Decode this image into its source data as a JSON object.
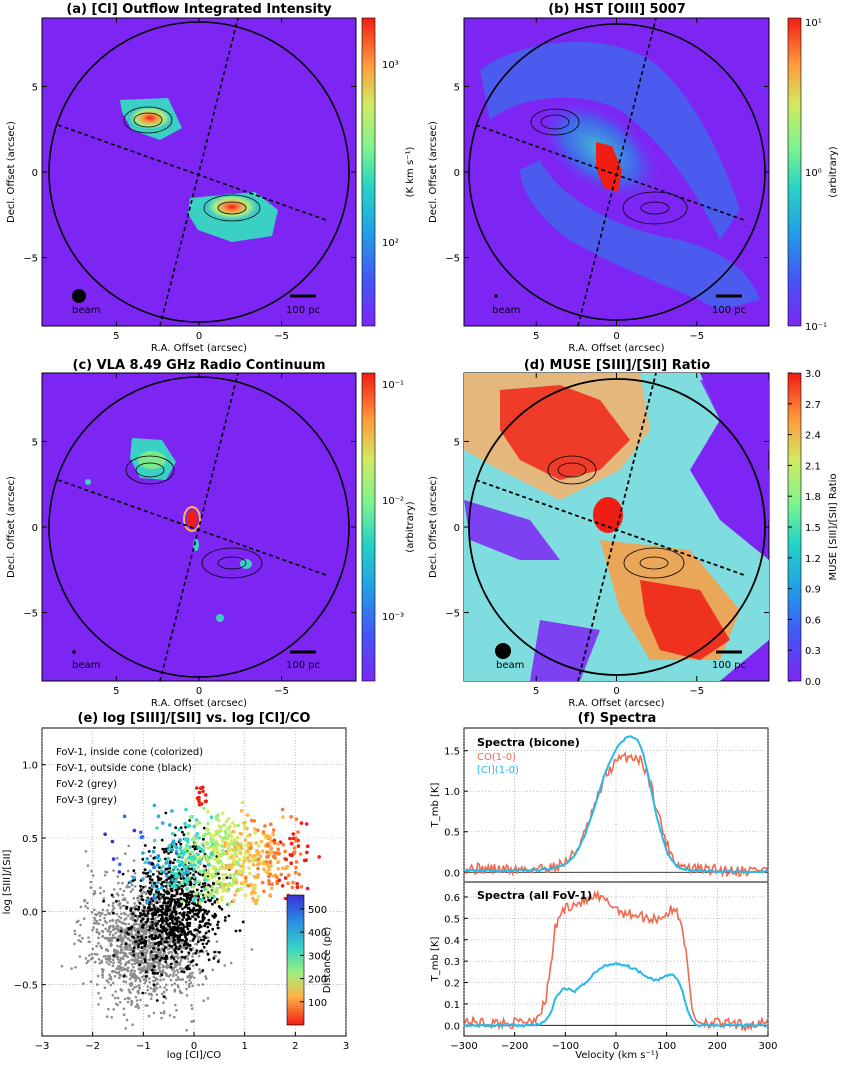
{
  "colors": {
    "map_bg": "#7d26f4",
    "spec_co": "#ef6a4e",
    "spec_ci": "#29b9e6",
    "grey_pts": "#8c8c8c",
    "black_pts": "#000000"
  },
  "common": {
    "xlabel": "R.A. Offset (arcsec)",
    "ylabel": "Decl. Offset (arcsec)",
    "beam": "beam",
    "scalebar": "100 pc",
    "xticks": [
      {
        "v": 5,
        "t": "5"
      },
      {
        "v": 0,
        "t": "0"
      },
      {
        "v": -5,
        "t": "−5"
      }
    ],
    "yticks": [
      {
        "v": 5,
        "t": "5"
      },
      {
        "v": 0,
        "t": "0"
      },
      {
        "v": -5,
        "t": "−5"
      }
    ]
  },
  "chart_data": [
    {
      "id": "a",
      "type": "heatmap",
      "title": "(a) [CI] Outflow Integrated Intensity",
      "xlabel": "R.A. Offset (arcsec)",
      "ylabel": "Decl. Offset (arcsec)",
      "xlim": [
        9.5,
        -9.5
      ],
      "ylim": [
        -9,
        9
      ],
      "colorbar": {
        "label": "(K km s⁻¹)",
        "scale": "log",
        "ticks": [
          "10³",
          "10²"
        ]
      },
      "features": [
        {
          "name": "north-east blob",
          "x": 3.2,
          "y": 3.4,
          "peak": "high"
        },
        {
          "name": "south-west blob",
          "x": -2.3,
          "y": -2.0,
          "peak": "high"
        }
      ]
    },
    {
      "id": "b",
      "type": "heatmap",
      "title": "(b) HST [OIII] 5007",
      "xlabel": "R.A. Offset (arcsec)",
      "ylabel": "Decl. Offset (arcsec)",
      "xlim": [
        9.5,
        -9.5
      ],
      "ylim": [
        -9,
        9
      ],
      "colorbar": {
        "label": "(arbitrary)",
        "scale": "log",
        "ticks": [
          "10¹",
          "10⁰",
          "10⁻¹"
        ]
      }
    },
    {
      "id": "c",
      "type": "heatmap",
      "title": "(c) VLA 8.49 GHz Radio Continuum",
      "xlabel": "R.A. Offset (arcsec)",
      "ylabel": "Decl. Offset (arcsec)",
      "xlim": [
        9.5,
        -9.5
      ],
      "ylim": [
        -9,
        9
      ],
      "colorbar": {
        "label": "(arbitrary)",
        "scale": "log",
        "ticks": [
          "10⁻¹",
          "10⁻²",
          "10⁻³"
        ]
      }
    },
    {
      "id": "d",
      "type": "heatmap",
      "title": "(d) MUSE [SIII]/[SII] Ratio",
      "xlabel": "R.A. Offset (arcsec)",
      "ylabel": "Decl. Offset (arcsec)",
      "xlim": [
        9.5,
        -9.5
      ],
      "ylim": [
        -9,
        9
      ],
      "colorbar": {
        "label": "MUSE [SIII]/[SII] Ratio",
        "scale": "linear",
        "range": [
          0.0,
          3.0
        ],
        "ticks": [
          "3.0",
          "2.7",
          "2.4",
          "2.1",
          "1.8",
          "1.5",
          "1.2",
          "0.9",
          "0.6",
          "0.3",
          "0.0"
        ]
      }
    },
    {
      "id": "e",
      "type": "scatter",
      "title": "(e) log [SIII]/[SII] vs. log [CI]/CO",
      "xlabel": "log [CI]/CO",
      "ylabel": "log [SIII]/[SII]",
      "xlim": [
        -3,
        3
      ],
      "ylim": [
        -0.85,
        1.25
      ],
      "xticks": [
        {
          "v": -3,
          "t": "−3"
        },
        {
          "v": -2,
          "t": "−2"
        },
        {
          "v": -1,
          "t": "−1"
        },
        {
          "v": 0,
          "t": "0"
        },
        {
          "v": 1,
          "t": "1"
        },
        {
          "v": 2,
          "t": "2"
        },
        {
          "v": 3,
          "t": "3"
        }
      ],
      "yticks": [
        {
          "v": -0.5,
          "t": "−0.5"
        },
        {
          "v": 0,
          "t": "0.0"
        },
        {
          "v": 0.5,
          "t": "0.5"
        },
        {
          "v": 1.0,
          "t": "1.0"
        }
      ],
      "legend": [
        "FoV-1, inside cone (colorized)",
        "FoV-1, outside cone (black)",
        "FoV-2 (grey)",
        "FoV-3 (grey)"
      ],
      "colorbar": {
        "label": "Distance (pc)",
        "range": [
          0,
          560
        ],
        "ticks": [
          "500",
          "400",
          "300",
          "200",
          "100"
        ]
      },
      "series": [
        {
          "name": "FoV-2/FoV-3 (grey)",
          "center": [
            -1.0,
            -0.28
          ],
          "spread": [
            0.55,
            0.2
          ]
        },
        {
          "name": "FoV-1 outside cone (black)",
          "center": [
            -0.35,
            0.05
          ],
          "spread": [
            0.45,
            0.2
          ]
        },
        {
          "name": "FoV-1 inside cone (colorized)",
          "center": [
            0.6,
            0.35
          ],
          "spread": [
            0.8,
            0.15
          ]
        }
      ]
    },
    {
      "id": "f",
      "type": "line",
      "title": "(f) Spectra",
      "xlabel": "Velocity (km s⁻¹)",
      "xlim": [
        -300,
        300
      ],
      "xticks": [
        {
          "v": -300,
          "t": "−300"
        },
        {
          "v": -200,
          "t": "−200"
        },
        {
          "v": -100,
          "t": "−100"
        },
        {
          "v": 0,
          "t": "0"
        },
        {
          "v": 100,
          "t": "100"
        },
        {
          "v": 200,
          "t": "200"
        },
        {
          "v": 300,
          "t": "300"
        }
      ],
      "panels": [
        {
          "label": "Spectra (bicone)",
          "ylabel": "T_mb [K]",
          "ylim": [
            -0.12,
            1.78
          ],
          "yticks": [
            {
              "v": 0,
              "t": "0.0"
            },
            {
              "v": 0.5,
              "t": "0.5"
            },
            {
              "v": 1.0,
              "t": "1.0"
            },
            {
              "v": 1.5,
              "t": "1.5"
            }
          ],
          "series": [
            {
              "name": "CO(1-0)",
              "color": "#ef6a4e",
              "x": [
                -300,
                -250,
                -200,
                -150,
                -120,
                -100,
                -80,
                -60,
                -40,
                -20,
                0,
                10,
                20,
                30,
                40,
                50,
                60,
                70,
                80,
                100,
                120,
                150,
                200,
                250,
                300
              ],
              "y": [
                0.05,
                0.04,
                0.03,
                0.05,
                0.07,
                0.12,
                0.25,
                0.5,
                0.85,
                1.2,
                1.36,
                1.4,
                1.42,
                1.43,
                1.42,
                1.37,
                1.25,
                1.05,
                0.8,
                0.35,
                0.1,
                0.04,
                0.03,
                0.02,
                0.04
              ]
            },
            {
              "name": "[CI](1-0)",
              "color": "#29b9e6",
              "x": [
                -300,
                -250,
                -200,
                -150,
                -120,
                -100,
                -80,
                -60,
                -40,
                -20,
                0,
                10,
                20,
                30,
                40,
                50,
                60,
                70,
                80,
                100,
                120,
                150,
                200,
                250,
                300
              ],
              "y": [
                0.02,
                0.02,
                0.02,
                0.03,
                0.05,
                0.1,
                0.22,
                0.48,
                0.85,
                1.25,
                1.52,
                1.6,
                1.66,
                1.68,
                1.65,
                1.55,
                1.3,
                1.0,
                0.7,
                0.25,
                0.06,
                0.02,
                0.01,
                0.01,
                0.01
              ]
            }
          ]
        },
        {
          "label": "Spectra (all FoV-1)",
          "ylabel": "T_mb [K]",
          "ylim": [
            -0.05,
            0.67
          ],
          "yticks": [
            {
              "v": 0,
              "t": "0.0"
            },
            {
              "v": 0.1,
              "t": "0.1"
            },
            {
              "v": 0.2,
              "t": "0.2"
            },
            {
              "v": 0.3,
              "t": "0.3"
            },
            {
              "v": 0.4,
              "t": "0.4"
            },
            {
              "v": 0.5,
              "t": "0.5"
            },
            {
              "v": 0.6,
              "t": "0.6"
            }
          ],
          "series": [
            {
              "name": "CO(1-0)",
              "color": "#ef6a4e",
              "x": [
                -300,
                -250,
                -200,
                -160,
                -140,
                -130,
                -120,
                -110,
                -100,
                -80,
                -60,
                -40,
                -20,
                0,
                20,
                40,
                60,
                80,
                100,
                110,
                120,
                130,
                140,
                150,
                160,
                200,
                250,
                300
              ],
              "y": [
                0.02,
                0.01,
                0.01,
                0.03,
                0.1,
                0.25,
                0.45,
                0.52,
                0.55,
                0.57,
                0.58,
                0.6,
                0.58,
                0.55,
                0.52,
                0.52,
                0.5,
                0.5,
                0.52,
                0.54,
                0.53,
                0.48,
                0.3,
                0.08,
                0.02,
                0.01,
                0.0,
                0.01
              ]
            },
            {
              "name": "[CI](1-0)",
              "color": "#29b9e6",
              "x": [
                -300,
                -250,
                -200,
                -160,
                -140,
                -130,
                -120,
                -110,
                -100,
                -80,
                -60,
                -40,
                -20,
                0,
                20,
                40,
                60,
                80,
                100,
                110,
                120,
                130,
                140,
                150,
                160,
                200,
                250,
                300
              ],
              "y": [
                0.0,
                0.0,
                0.0,
                0.0,
                0.02,
                0.05,
                0.12,
                0.16,
                0.17,
                0.16,
                0.2,
                0.25,
                0.28,
                0.29,
                0.28,
                0.26,
                0.23,
                0.21,
                0.23,
                0.24,
                0.22,
                0.17,
                0.08,
                0.02,
                0.0,
                0.0,
                0.0,
                0.0
              ]
            }
          ]
        }
      ]
    }
  ]
}
